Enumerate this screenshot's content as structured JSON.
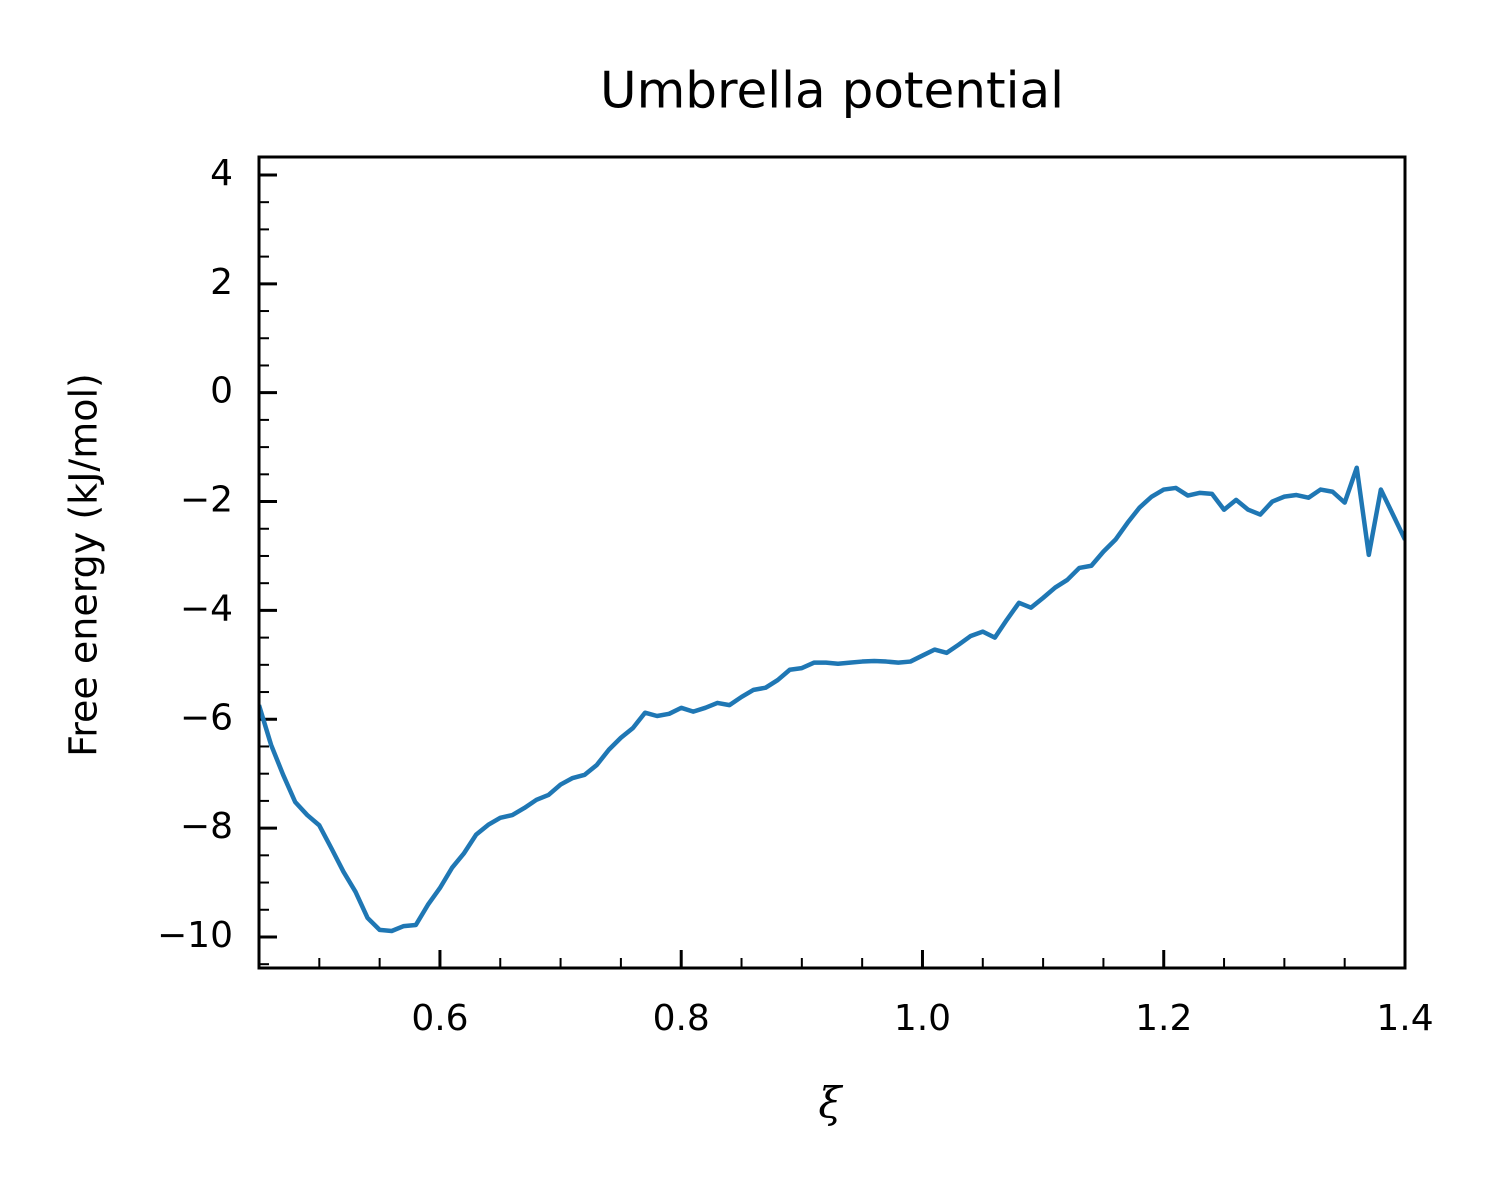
{
  "chart_data": {
    "type": "line",
    "title": "Umbrella potential",
    "xlabel": "ξ",
    "ylabel": "Free energy (kJ/mol)",
    "x": [
      0.45,
      0.46,
      0.47,
      0.48,
      0.49,
      0.5,
      0.51,
      0.52,
      0.53,
      0.54,
      0.55,
      0.56,
      0.57,
      0.58,
      0.59,
      0.6,
      0.61,
      0.62,
      0.63,
      0.64,
      0.65,
      0.66,
      0.67,
      0.68,
      0.69,
      0.7,
      0.71,
      0.72,
      0.73,
      0.74,
      0.75,
      0.76,
      0.77,
      0.78,
      0.79,
      0.8,
      0.81,
      0.82,
      0.83,
      0.84,
      0.85,
      0.86,
      0.87,
      0.88,
      0.89,
      0.9,
      0.91,
      0.92,
      0.93,
      0.94,
      0.95,
      0.96,
      0.97,
      0.98,
      0.99,
      1.0,
      1.01,
      1.02,
      1.03,
      1.04,
      1.05,
      1.06,
      1.07,
      1.08,
      1.09,
      1.1,
      1.11,
      1.12,
      1.13,
      1.14,
      1.15,
      1.16,
      1.17,
      1.18,
      1.19,
      1.2,
      1.21,
      1.22,
      1.23,
      1.24,
      1.25,
      1.26,
      1.27,
      1.28,
      1.29,
      1.3,
      1.31,
      1.32,
      1.33,
      1.34,
      1.35,
      1.36,
      1.37,
      1.38,
      1.39,
      1.4
    ],
    "series": [
      {
        "name": "Free energy",
        "color": "#1f77b4",
        "values": [
          -5.74,
          -6.47,
          -7.02,
          -7.52,
          -7.76,
          -7.95,
          -8.37,
          -8.8,
          -9.17,
          -9.65,
          -9.87,
          -9.89,
          -9.8,
          -9.78,
          -9.41,
          -9.1,
          -8.73,
          -8.46,
          -8.12,
          -7.94,
          -7.81,
          -7.76,
          -7.63,
          -7.48,
          -7.39,
          -7.2,
          -7.08,
          -7.02,
          -6.84,
          -6.56,
          -6.34,
          -6.16,
          -5.88,
          -5.94,
          -5.9,
          -5.79,
          -5.86,
          -5.79,
          -5.7,
          -5.74,
          -5.59,
          -5.46,
          -5.42,
          -5.28,
          -5.09,
          -5.06,
          -4.96,
          -4.96,
          -4.98,
          -4.96,
          -4.94,
          -4.93,
          -4.94,
          -4.96,
          -4.94,
          -4.83,
          -4.72,
          -4.78,
          -4.63,
          -4.47,
          -4.39,
          -4.5,
          -4.17,
          -3.86,
          -3.95,
          -3.77,
          -3.58,
          -3.44,
          -3.22,
          -3.18,
          -2.92,
          -2.7,
          -2.39,
          -2.11,
          -1.91,
          -1.78,
          -1.75,
          -1.89,
          -1.84,
          -1.86,
          -2.15,
          -1.97,
          -2.15,
          -2.24,
          -2.0,
          -1.91,
          -1.88,
          -1.93,
          -1.78,
          -1.82,
          -2.02,
          -1.38,
          -2.98,
          -1.78,
          -2.24,
          -2.7
        ]
      }
    ],
    "xlim": [
      0.45,
      1.4
    ],
    "ylim": [
      -10.57,
      4.33
    ],
    "xticks": [
      0.6,
      0.8,
      {
        "value": 1.0,
        "label": "1.0"
      },
      1.2,
      1.4
    ],
    "yticks": [
      {
        "value": -10,
        "label": "−10"
      },
      {
        "value": -8,
        "label": "−8"
      },
      {
        "value": -6,
        "label": "−6"
      },
      {
        "value": -4,
        "label": "−4"
      },
      {
        "value": -2,
        "label": "−2"
      },
      0,
      2,
      4
    ],
    "xminorticks": [
      0.5,
      0.55,
      0.65,
      0.7,
      0.75,
      0.85,
      0.9,
      0.95,
      1.05,
      1.1,
      1.15,
      1.25,
      1.3,
      1.35
    ],
    "yminorticks": [
      -10.5,
      -9.5,
      -9,
      -8.5,
      -7.5,
      -7,
      -6.5,
      -5.5,
      -5,
      -4.5,
      -3.5,
      -3,
      -2.5,
      -1.5,
      -1,
      -0.5,
      0.5,
      1,
      1.5,
      2.5,
      3,
      3.5
    ],
    "grid": false
  }
}
